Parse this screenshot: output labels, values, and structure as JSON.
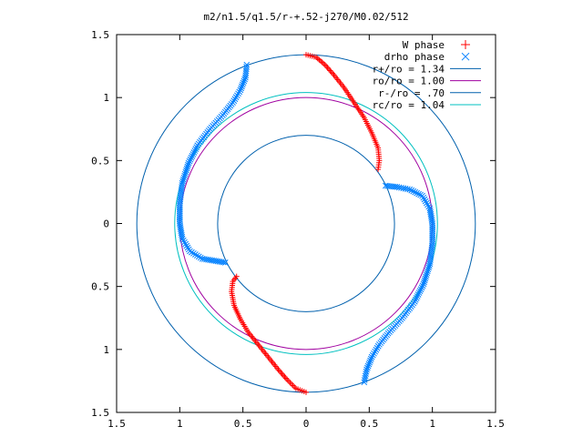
{
  "chart_data": {
    "type": "scatter",
    "title": "m2/n1.5/q1.5/r-+.52-j270/M0.02/512",
    "xlabel": "",
    "ylabel": "",
    "xlim": [
      -1.5,
      1.5
    ],
    "ylim": [
      -1.5,
      1.5
    ],
    "x_ticks": [
      {
        "value": -1.5,
        "label": "1.5"
      },
      {
        "value": -1.0,
        "label": "1"
      },
      {
        "value": -0.5,
        "label": "0.5"
      },
      {
        "value": 0.0,
        "label": "0"
      },
      {
        "value": 0.5,
        "label": "0.5"
      },
      {
        "value": 1.0,
        "label": "1"
      },
      {
        "value": 1.5,
        "label": "1.5"
      }
    ],
    "y_ticks": [
      {
        "value": 1.5,
        "label": "1.5"
      },
      {
        "value": 1.0,
        "label": "1"
      },
      {
        "value": 0.5,
        "label": "0.5"
      },
      {
        "value": 0.0,
        "label": "0"
      },
      {
        "value": -0.5,
        "label": "0.5"
      },
      {
        "value": -1.0,
        "label": "1"
      },
      {
        "value": -1.5,
        "label": "1.5"
      }
    ],
    "grid": false,
    "legend_position": "top-right",
    "series": [
      {
        "name": "W phase",
        "kind": "points",
        "marker": "+",
        "color": "#ff0000",
        "segments": [
          [
            [
              0.0,
              1.34
            ],
            [
              0.08,
              1.32
            ],
            [
              0.15,
              1.26
            ],
            [
              0.22,
              1.18
            ],
            [
              0.3,
              1.08
            ],
            [
              0.38,
              0.96
            ],
            [
              0.46,
              0.84
            ],
            [
              0.52,
              0.72
            ],
            [
              0.57,
              0.6
            ],
            [
              0.58,
              0.5
            ],
            [
              0.57,
              0.43
            ]
          ],
          [
            [
              0.0,
              -1.34
            ],
            [
              -0.08,
              -1.31
            ],
            [
              -0.15,
              -1.24
            ],
            [
              -0.22,
              -1.16
            ],
            [
              -0.3,
              -1.06
            ],
            [
              -0.38,
              -0.96
            ],
            [
              -0.46,
              -0.86
            ],
            [
              -0.52,
              -0.76
            ],
            [
              -0.57,
              -0.65
            ],
            [
              -0.59,
              -0.54
            ],
            [
              -0.58,
              -0.46
            ],
            [
              -0.55,
              -0.42
            ]
          ]
        ]
      },
      {
        "name": "drho phase",
        "kind": "points",
        "marker": "x",
        "color": "#0080ff",
        "segments": [
          [
            [
              -0.47,
              1.26
            ],
            [
              -0.48,
              1.16
            ],
            [
              -0.52,
              1.06
            ],
            [
              -0.58,
              0.96
            ],
            [
              -0.66,
              0.86
            ],
            [
              -0.76,
              0.75
            ],
            [
              -0.86,
              0.62
            ],
            [
              -0.93,
              0.48
            ],
            [
              -0.98,
              0.32
            ],
            [
              -1.0,
              0.16
            ],
            [
              -1.0,
              0.0
            ],
            [
              -0.98,
              -0.12
            ],
            [
              -0.92,
              -0.22
            ],
            [
              -0.82,
              -0.28
            ],
            [
              -0.7,
              -0.3
            ],
            [
              -0.64,
              -0.31
            ]
          ],
          [
            [
              0.63,
              0.3
            ],
            [
              0.72,
              0.29
            ],
            [
              0.82,
              0.27
            ],
            [
              0.92,
              0.22
            ],
            [
              0.98,
              0.12
            ],
            [
              1.0,
              0.0
            ],
            [
              1.0,
              -0.16
            ],
            [
              0.98,
              -0.32
            ],
            [
              0.93,
              -0.48
            ],
            [
              0.86,
              -0.62
            ],
            [
              0.76,
              -0.75
            ],
            [
              0.66,
              -0.86
            ],
            [
              0.58,
              -0.96
            ],
            [
              0.52,
              -1.06
            ],
            [
              0.48,
              -1.16
            ],
            [
              0.46,
              -1.26
            ]
          ]
        ]
      },
      {
        "name": "r+/ro = 1.34",
        "kind": "circle",
        "radius": 1.34,
        "color": "#0060ad"
      },
      {
        "name": "ro/ro = 1.00",
        "kind": "circle",
        "radius": 1.0,
        "color": "#a000a0"
      },
      {
        "name": "r-/ro = .70",
        "kind": "circle",
        "radius": 0.7,
        "color": "#0060ad"
      },
      {
        "name": "rc/ro = 1.04",
        "kind": "circle",
        "radius": 1.04,
        "color": "#00c0c0"
      }
    ]
  }
}
